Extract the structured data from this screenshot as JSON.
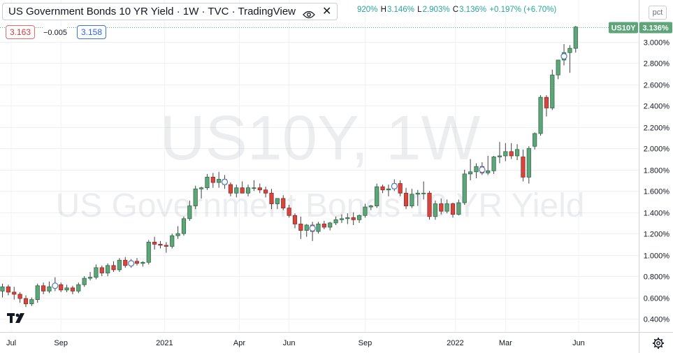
{
  "header": {
    "title": "US Government Bonds 10 YR Yield · 1W · TVC · TradingView",
    "ohlc": {
      "open_label": "",
      "open_value": "920%",
      "high_label": "H",
      "high_value": "3.146%",
      "low_label": "L",
      "low_value": "2.903%",
      "close_label": "C",
      "close_value": "3.136%",
      "change": "+0.197% (+6.70%)"
    }
  },
  "trade": {
    "sell": "3.163",
    "spread": "−0.005",
    "buy": "3.158"
  },
  "unit_label": "pct",
  "watermark": {
    "symbol": "US10Y, 1W",
    "name": "US Government Bonds 10 YR Yield"
  },
  "last_price": {
    "ticker": "US10Y",
    "value": "3.136%"
  },
  "colors": {
    "up": "#26a69a",
    "down": "#ef5350",
    "up_fill": "#5ea67a",
    "down_fill": "#d8453f",
    "accent": "#2962ff"
  },
  "chart_data": {
    "type": "candlestick",
    "ylim": [
      0.3,
      3.2
    ],
    "y_ticks": [
      "0.400%",
      "0.600%",
      "0.800%",
      "1.000%",
      "1.200%",
      "1.400%",
      "1.600%",
      "1.800%",
      "2.000%",
      "2.200%",
      "2.400%",
      "2.600%",
      "2.800%",
      "3.000%"
    ],
    "y_tick_values": [
      0.4,
      0.6,
      0.8,
      1.0,
      1.2,
      1.4,
      1.6,
      1.8,
      2.0,
      2.2,
      2.4,
      2.6,
      2.8,
      3.0
    ],
    "x_labels": [
      "Jul",
      "Sep",
      "2021",
      "Apr",
      "Jun",
      "Sep",
      "2022",
      "Mar",
      "Jun"
    ],
    "x_label_index": [
      1.5,
      10,
      27.7,
      40.5,
      49,
      62,
      77.4,
      86,
      98.5
    ],
    "candles": [
      {
        "o": 0.66,
        "h": 0.73,
        "l": 0.6,
        "c": 0.7
      },
      {
        "o": 0.7,
        "h": 0.72,
        "l": 0.62,
        "c": 0.65
      },
      {
        "o": 0.65,
        "h": 0.7,
        "l": 0.58,
        "c": 0.63
      },
      {
        "o": 0.63,
        "h": 0.65,
        "l": 0.55,
        "c": 0.59
      },
      {
        "o": 0.59,
        "h": 0.62,
        "l": 0.51,
        "c": 0.54
      },
      {
        "o": 0.54,
        "h": 0.6,
        "l": 0.52,
        "c": 0.58
      },
      {
        "o": 0.58,
        "h": 0.73,
        "l": 0.55,
        "c": 0.71
      },
      {
        "o": 0.71,
        "h": 0.74,
        "l": 0.63,
        "c": 0.66
      },
      {
        "o": 0.66,
        "h": 0.75,
        "l": 0.64,
        "c": 0.7
      },
      {
        "o": 0.7,
        "h": 0.79,
        "l": 0.66,
        "c": 0.72
      },
      {
        "o": 0.72,
        "h": 0.74,
        "l": 0.65,
        "c": 0.67
      },
      {
        "o": 0.67,
        "h": 0.72,
        "l": 0.65,
        "c": 0.69
      },
      {
        "o": 0.69,
        "h": 0.71,
        "l": 0.63,
        "c": 0.66
      },
      {
        "o": 0.66,
        "h": 0.74,
        "l": 0.64,
        "c": 0.72
      },
      {
        "o": 0.72,
        "h": 0.8,
        "l": 0.7,
        "c": 0.78
      },
      {
        "o": 0.78,
        "h": 0.84,
        "l": 0.76,
        "c": 0.79
      },
      {
        "o": 0.79,
        "h": 0.91,
        "l": 0.77,
        "c": 0.88
      },
      {
        "o": 0.88,
        "h": 0.9,
        "l": 0.8,
        "c": 0.83
      },
      {
        "o": 0.83,
        "h": 0.92,
        "l": 0.8,
        "c": 0.9
      },
      {
        "o": 0.9,
        "h": 0.94,
        "l": 0.84,
        "c": 0.86
      },
      {
        "o": 0.86,
        "h": 0.97,
        "l": 0.84,
        "c": 0.95
      },
      {
        "o": 0.95,
        "h": 0.98,
        "l": 0.88,
        "c": 0.9
      },
      {
        "o": 0.9,
        "h": 0.96,
        "l": 0.88,
        "c": 0.94
      },
      {
        "o": 0.94,
        "h": 0.97,
        "l": 0.9,
        "c": 0.92
      },
      {
        "o": 0.92,
        "h": 0.94,
        "l": 0.89,
        "c": 0.93
      },
      {
        "o": 0.93,
        "h": 1.14,
        "l": 0.91,
        "c": 1.12
      },
      {
        "o": 1.12,
        "h": 1.17,
        "l": 1.05,
        "c": 1.1
      },
      {
        "o": 1.1,
        "h": 1.13,
        "l": 1.06,
        "c": 1.09
      },
      {
        "o": 1.09,
        "h": 1.12,
        "l": 1.02,
        "c": 1.08
      },
      {
        "o": 1.08,
        "h": 1.2,
        "l": 1.06,
        "c": 1.18
      },
      {
        "o": 1.18,
        "h": 1.27,
        "l": 1.15,
        "c": 1.2
      },
      {
        "o": 1.2,
        "h": 1.36,
        "l": 1.18,
        "c": 1.34
      },
      {
        "o": 1.34,
        "h": 1.51,
        "l": 1.32,
        "c": 1.46
      },
      {
        "o": 1.46,
        "h": 1.65,
        "l": 1.43,
        "c": 1.62
      },
      {
        "o": 1.62,
        "h": 1.64,
        "l": 1.53,
        "c": 1.63
      },
      {
        "o": 1.63,
        "h": 1.76,
        "l": 1.61,
        "c": 1.73
      },
      {
        "o": 1.73,
        "h": 1.77,
        "l": 1.63,
        "c": 1.68
      },
      {
        "o": 1.68,
        "h": 1.78,
        "l": 1.63,
        "c": 1.71
      },
      {
        "o": 1.71,
        "h": 1.75,
        "l": 1.62,
        "c": 1.66
      },
      {
        "o": 1.66,
        "h": 1.68,
        "l": 1.55,
        "c": 1.58
      },
      {
        "o": 1.58,
        "h": 1.66,
        "l": 1.54,
        "c": 1.63
      },
      {
        "o": 1.63,
        "h": 1.69,
        "l": 1.58,
        "c": 1.58
      },
      {
        "o": 1.58,
        "h": 1.66,
        "l": 1.55,
        "c": 1.63
      },
      {
        "o": 1.63,
        "h": 1.7,
        "l": 1.6,
        "c": 1.63
      },
      {
        "o": 1.63,
        "h": 1.67,
        "l": 1.58,
        "c": 1.61
      },
      {
        "o": 1.61,
        "h": 1.64,
        "l": 1.54,
        "c": 1.58
      },
      {
        "o": 1.58,
        "h": 1.62,
        "l": 1.43,
        "c": 1.48
      },
      {
        "o": 1.48,
        "h": 1.53,
        "l": 1.43,
        "c": 1.53
      },
      {
        "o": 1.53,
        "h": 1.56,
        "l": 1.42,
        "c": 1.44
      },
      {
        "o": 1.44,
        "h": 1.47,
        "l": 1.35,
        "c": 1.37
      },
      {
        "o": 1.37,
        "h": 1.39,
        "l": 1.25,
        "c": 1.29
      },
      {
        "o": 1.29,
        "h": 1.36,
        "l": 1.15,
        "c": 1.23
      },
      {
        "o": 1.23,
        "h": 1.29,
        "l": 1.17,
        "c": 1.28
      },
      {
        "o": 1.28,
        "h": 1.31,
        "l": 1.13,
        "c": 1.22
      },
      {
        "o": 1.22,
        "h": 1.31,
        "l": 1.2,
        "c": 1.29
      },
      {
        "o": 1.29,
        "h": 1.32,
        "l": 1.24,
        "c": 1.26
      },
      {
        "o": 1.26,
        "h": 1.31,
        "l": 1.23,
        "c": 1.3
      },
      {
        "o": 1.3,
        "h": 1.36,
        "l": 1.28,
        "c": 1.33
      },
      {
        "o": 1.33,
        "h": 1.38,
        "l": 1.3,
        "c": 1.34
      },
      {
        "o": 1.34,
        "h": 1.39,
        "l": 1.29,
        "c": 1.35
      },
      {
        "o": 1.35,
        "h": 1.4,
        "l": 1.28,
        "c": 1.33
      },
      {
        "o": 1.33,
        "h": 1.38,
        "l": 1.3,
        "c": 1.37
      },
      {
        "o": 1.37,
        "h": 1.48,
        "l": 1.35,
        "c": 1.45
      },
      {
        "o": 1.45,
        "h": 1.47,
        "l": 1.42,
        "c": 1.46
      },
      {
        "o": 1.46,
        "h": 1.67,
        "l": 1.44,
        "c": 1.64
      },
      {
        "o": 1.64,
        "h": 1.66,
        "l": 1.58,
        "c": 1.61
      },
      {
        "o": 1.61,
        "h": 1.66,
        "l": 1.55,
        "c": 1.62
      },
      {
        "o": 1.62,
        "h": 1.71,
        "l": 1.6,
        "c": 1.67
      },
      {
        "o": 1.67,
        "h": 1.7,
        "l": 1.55,
        "c": 1.58
      },
      {
        "o": 1.58,
        "h": 1.63,
        "l": 1.43,
        "c": 1.46
      },
      {
        "o": 1.46,
        "h": 1.62,
        "l": 1.44,
        "c": 1.57
      },
      {
        "o": 1.57,
        "h": 1.61,
        "l": 1.46,
        "c": 1.58
      },
      {
        "o": 1.58,
        "h": 1.69,
        "l": 1.52,
        "c": 1.58
      },
      {
        "o": 1.58,
        "h": 1.6,
        "l": 1.33,
        "c": 1.36
      },
      {
        "o": 1.36,
        "h": 1.51,
        "l": 1.33,
        "c": 1.48
      },
      {
        "o": 1.48,
        "h": 1.53,
        "l": 1.38,
        "c": 1.41
      },
      {
        "o": 1.41,
        "h": 1.52,
        "l": 1.39,
        "c": 1.48
      },
      {
        "o": 1.48,
        "h": 1.49,
        "l": 1.35,
        "c": 1.38
      },
      {
        "o": 1.38,
        "h": 1.52,
        "l": 1.37,
        "c": 1.49
      },
      {
        "o": 1.49,
        "h": 1.8,
        "l": 1.47,
        "c": 1.76
      },
      {
        "o": 1.76,
        "h": 1.9,
        "l": 1.7,
        "c": 1.78
      },
      {
        "o": 1.78,
        "h": 1.86,
        "l": 1.72,
        "c": 1.83
      },
      {
        "o": 1.83,
        "h": 1.87,
        "l": 1.75,
        "c": 1.77
      },
      {
        "o": 1.77,
        "h": 1.93,
        "l": 1.75,
        "c": 1.79
      },
      {
        "o": 1.79,
        "h": 1.93,
        "l": 1.76,
        "c": 1.92
      },
      {
        "o": 1.92,
        "h": 2.06,
        "l": 1.86,
        "c": 1.93
      },
      {
        "o": 1.93,
        "h": 2.05,
        "l": 1.88,
        "c": 1.97
      },
      {
        "o": 1.97,
        "h": 2.05,
        "l": 1.9,
        "c": 1.93
      },
      {
        "o": 1.93,
        "h": 2.04,
        "l": 1.89,
        "c": 1.99
      },
      {
        "o": 1.92,
        "h": 1.99,
        "l": 1.69,
        "c": 1.73
      },
      {
        "o": 1.73,
        "h": 2.02,
        "l": 1.67,
        "c": 2.0
      },
      {
        "o": 2.02,
        "h": 2.15,
        "l": 1.99,
        "c": 2.14
      },
      {
        "o": 2.14,
        "h": 2.5,
        "l": 2.12,
        "c": 2.48
      },
      {
        "o": 2.48,
        "h": 2.5,
        "l": 2.3,
        "c": 2.38
      },
      {
        "o": 2.38,
        "h": 2.74,
        "l": 2.36,
        "c": 2.69
      },
      {
        "o": 2.69,
        "h": 2.83,
        "l": 2.65,
        "c": 2.83
      },
      {
        "o": 2.83,
        "h": 2.98,
        "l": 2.78,
        "c": 2.9
      },
      {
        "o": 2.9,
        "h": 2.97,
        "l": 2.71,
        "c": 2.94
      },
      {
        "o": 2.94,
        "h": 3.15,
        "l": 2.9,
        "c": 3.14
      }
    ],
    "dividend_markers_index": [
      9,
      22,
      38,
      53,
      67,
      82,
      96
    ]
  }
}
